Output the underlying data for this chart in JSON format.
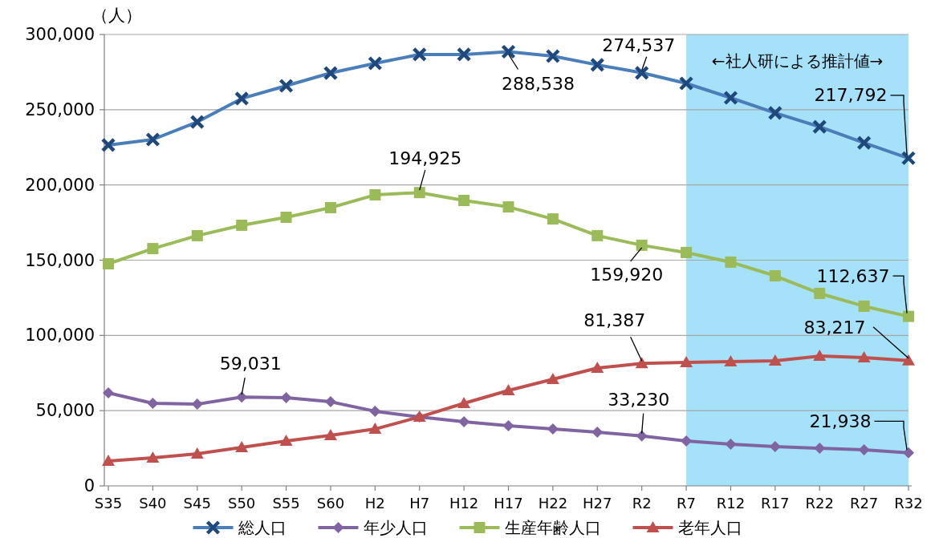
{
  "chart_data": {
    "type": "line",
    "ylabel": "（人）",
    "categories": [
      "S35",
      "S40",
      "S45",
      "S50",
      "S55",
      "S60",
      "H2",
      "H7",
      "H12",
      "H17",
      "H22",
      "H27",
      "R2",
      "R7",
      "R12",
      "R17",
      "R22",
      "R27",
      "R32"
    ],
    "ylim": [
      0,
      300000
    ],
    "yticks": [
      {
        "value": 0,
        "label": "0"
      },
      {
        "value": 50000,
        "label": "50,000"
      },
      {
        "value": 100000,
        "label": "100,000"
      },
      {
        "value": 150000,
        "label": "150,000"
      },
      {
        "value": 200000,
        "label": "200,000"
      },
      {
        "value": 250000,
        "label": "250,000"
      },
      {
        "value": 300000,
        "label": "300,000"
      }
    ],
    "grid": "y",
    "legend": "bottom",
    "line_style": "solid",
    "bands": [
      {
        "axis": "x",
        "from": "R7",
        "to": "R32",
        "label": "←社人研による推計値→",
        "color": "#a5e1f9"
      }
    ],
    "series": [
      {
        "name": "総人口",
        "color": "#4a7ebb",
        "marker": "cross",
        "values": [
          226500,
          230200,
          241900,
          257400,
          265900,
          274400,
          280800,
          286700,
          286700,
          288538,
          285600,
          279800,
          274537,
          267500,
          257900,
          247800,
          238700,
          228000,
          217792
        ],
        "value_labels": [
          null,
          null,
          null,
          null,
          null,
          null,
          null,
          null,
          null,
          "288,538",
          null,
          null,
          "274,537",
          null,
          null,
          null,
          null,
          null,
          "217,792"
        ]
      },
      {
        "name": "年少人口",
        "color": "#8064a2",
        "marker": "diamond",
        "values": [
          61800,
          54900,
          54300,
          59031,
          58600,
          55900,
          49600,
          45800,
          42600,
          40000,
          37800,
          35700,
          33230,
          29800,
          27700,
          26100,
          25000,
          24000,
          21938
        ],
        "value_labels": [
          null,
          null,
          null,
          "59,031",
          null,
          null,
          null,
          null,
          null,
          null,
          null,
          null,
          "33,230",
          null,
          null,
          null,
          null,
          null,
          "21,938"
        ]
      },
      {
        "name": "生産年齢人口",
        "color": "#9bbb59",
        "marker": "square",
        "values": [
          147600,
          157700,
          166300,
          173200,
          178500,
          184900,
          193400,
          194925,
          189700,
          185400,
          177400,
          166300,
          159920,
          155100,
          148700,
          139600,
          127900,
          119400,
          112637
        ],
        "value_labels": [
          null,
          null,
          null,
          null,
          null,
          null,
          null,
          "194,925",
          null,
          null,
          null,
          null,
          "159,920",
          null,
          null,
          null,
          null,
          null,
          "112,637"
        ]
      },
      {
        "name": "老年人口",
        "color": "#c0504d",
        "marker": "triangle",
        "values": [
          16500,
          18600,
          21300,
          25600,
          29800,
          33600,
          37800,
          45800,
          54900,
          63400,
          70900,
          78300,
          81387,
          82000,
          82600,
          83100,
          86300,
          85200,
          83217
        ],
        "value_labels": [
          null,
          null,
          null,
          null,
          null,
          null,
          null,
          null,
          null,
          null,
          null,
          null,
          "81,387",
          null,
          null,
          null,
          null,
          null,
          "83,217"
        ]
      }
    ]
  }
}
